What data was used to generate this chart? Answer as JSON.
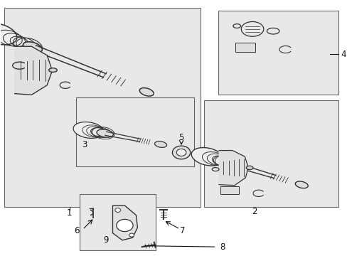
{
  "background_color": "#ffffff",
  "box_fc": "#e8e8e8",
  "box_edge": "#666666",
  "line_color": "#333333",
  "label_color": "#111111",
  "boxes": {
    "main": [
      0.01,
      0.19,
      0.57,
      0.78
    ],
    "b2": [
      0.59,
      0.19,
      0.39,
      0.42
    ],
    "b3": [
      0.22,
      0.35,
      0.34,
      0.27
    ],
    "b4": [
      0.63,
      0.63,
      0.35,
      0.33
    ],
    "b6": [
      0.23,
      0.02,
      0.22,
      0.22
    ]
  }
}
